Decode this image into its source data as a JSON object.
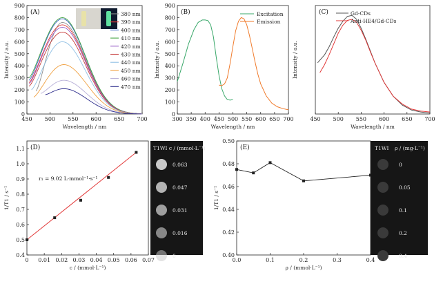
{
  "chart_data": [
    {
      "panel": "(A)",
      "type": "line",
      "xlabel": "Wavelength / nm",
      "ylabel": "Intensity / a.u.",
      "xlim": [
        450,
        700
      ],
      "ylim": [
        0,
        900
      ],
      "xticks": [
        450,
        500,
        550,
        600,
        650,
        700
      ],
      "yticks": [
        0,
        100,
        200,
        300,
        400,
        500,
        600,
        700,
        800,
        900
      ],
      "legend_position": "top-right",
      "series": [
        {
          "name": "380 nm",
          "color": "#8e8e8e",
          "start": 470,
          "peak_x": 527,
          "peak_y": 760,
          "start_y": 190
        },
        {
          "name": "390 nm",
          "color": "#e23a3a",
          "start": 455,
          "peak_x": 527,
          "peak_y": 740,
          "start_y": 260
        },
        {
          "name": "400 nm",
          "color": "#3b62c4",
          "start": 455,
          "peak_x": 527,
          "peak_y": 790,
          "start_y": 280
        },
        {
          "name": "410 nm",
          "color": "#47a846",
          "start": 455,
          "peak_x": 527,
          "peak_y": 800,
          "start_y": 300
        },
        {
          "name": "420 nm",
          "color": "#9a62c8",
          "start": 455,
          "peak_x": 527,
          "peak_y": 720,
          "start_y": 250
        },
        {
          "name": "430 nm",
          "color": "#c63a3a",
          "start": 455,
          "peak_x": 527,
          "peak_y": 680,
          "start_y": 230
        },
        {
          "name": "440 nm",
          "color": "#8fbfe4",
          "start": 460,
          "peak_x": 527,
          "peak_y": 600,
          "start_y": 200
        },
        {
          "name": "450 nm",
          "color": "#f0a040",
          "start": 465,
          "peak_x": 530,
          "peak_y": 410,
          "start_y": 140
        },
        {
          "name": "460 nm",
          "color": "#b8b0d8",
          "start": 480,
          "peak_x": 530,
          "peak_y": 280,
          "start_y": 170
        },
        {
          "name": "470 nm",
          "color": "#2c2c8c",
          "start": 490,
          "peak_x": 530,
          "peak_y": 210,
          "start_y": 160
        }
      ]
    },
    {
      "panel": "(B)",
      "type": "line",
      "xlabel": "Wavelength / nm",
      "ylabel": "Intensity / a.u.",
      "xlim": [
        300,
        700
      ],
      "ylim": [
        0,
        900
      ],
      "xticks": [
        300,
        350,
        400,
        450,
        500,
        550,
        600,
        650,
        700
      ],
      "yticks": [
        0,
        100,
        200,
        300,
        400,
        500,
        600,
        700,
        800,
        900
      ],
      "legend_position": "top-right",
      "series": [
        {
          "name": "Excitation",
          "color": "#3aa86a",
          "x": [
            300,
            320,
            340,
            360,
            375,
            390,
            400,
            410,
            420,
            430,
            440,
            450,
            460,
            470,
            480,
            490,
            500
          ],
          "y": [
            270,
            420,
            580,
            700,
            760,
            780,
            780,
            775,
            740,
            640,
            470,
            320,
            210,
            150,
            120,
            115,
            120
          ]
        },
        {
          "name": "Emission",
          "color": "#f07a2a",
          "x": [
            450,
            460,
            470,
            480,
            490,
            500,
            510,
            520,
            530,
            540,
            550,
            560,
            570,
            580,
            590,
            600,
            620,
            640,
            660,
            680,
            700
          ],
          "y": [
            240,
            235,
            250,
            300,
            420,
            560,
            690,
            770,
            800,
            790,
            740,
            650,
            540,
            430,
            330,
            250,
            150,
            90,
            60,
            45,
            35
          ]
        }
      ]
    },
    {
      "panel": "(C)",
      "type": "line",
      "xlabel": "Wavelength / nm",
      "ylabel": "Intensity / a.u.",
      "xlim": [
        450,
        700
      ],
      "xticks": [
        450,
        500,
        550,
        600,
        650,
        700
      ],
      "legend_position": "top-right",
      "series": [
        {
          "name": "Gd-CDs",
          "color": "#555555",
          "x": [
            455,
            470,
            480,
            490,
            500,
            510,
            520,
            530,
            540,
            550,
            560,
            570,
            580,
            600,
            620,
            640,
            660,
            680,
            700
          ],
          "y": [
            0.52,
            0.6,
            0.68,
            0.78,
            0.87,
            0.94,
            0.99,
            1.0,
            0.96,
            0.87,
            0.76,
            0.64,
            0.52,
            0.32,
            0.18,
            0.09,
            0.04,
            0.02,
            0.01
          ]
        },
        {
          "name": "Anti-HE4/Gd-CDs",
          "color": "#e23a3a",
          "x": [
            460,
            470,
            480,
            490,
            500,
            510,
            520,
            530,
            540,
            550,
            560,
            570,
            580,
            600,
            620,
            640,
            660,
            680,
            700
          ],
          "y": [
            0.42,
            0.5,
            0.6,
            0.71,
            0.82,
            0.9,
            0.95,
            0.96,
            0.93,
            0.85,
            0.75,
            0.63,
            0.52,
            0.32,
            0.18,
            0.1,
            0.05,
            0.03,
            0.02
          ]
        }
      ]
    },
    {
      "panel": "(D)",
      "type": "scatter",
      "xlabel": "c / (mmol·L⁻¹)",
      "ylabel": "1/T1 / s⁻¹",
      "xlim": [
        0,
        0.07
      ],
      "ylim": [
        0.4,
        1.15
      ],
      "xticks": [
        "0",
        "0.01",
        "0.02",
        "0.03",
        "0.04",
        "0.05",
        "0.06",
        "0.07"
      ],
      "xtick_values": [
        0,
        0.01,
        0.02,
        0.03,
        0.04,
        0.05,
        0.06,
        0.07
      ],
      "yticks": [
        "0.4",
        "0.5",
        "0.6",
        "0.7",
        "0.8",
        "0.9",
        "1.0",
        "1.1"
      ],
      "ytick_values": [
        0.4,
        0.5,
        0.6,
        0.7,
        0.8,
        0.9,
        1.0,
        1.1
      ],
      "points_x": [
        0,
        0.016,
        0.031,
        0.047,
        0.063
      ],
      "points_y": [
        0.5,
        0.645,
        0.76,
        0.91,
        1.075
      ],
      "fit": {
        "x": [
          0,
          0.063
        ],
        "y": [
          0.5,
          1.075
        ],
        "color": "#e23a3a"
      },
      "annotation": "r₁ = 9.02 L·mmol⁻¹·s⁻¹",
      "mri_header": "T1WI c / (mmol·L⁻¹)",
      "mri_labels": [
        "0.063",
        "0.047",
        "0.031",
        "0.016",
        "0"
      ]
    },
    {
      "panel": "(E)",
      "type": "line",
      "xlabel": "ρ / (mmol·L⁻¹)",
      "ylabel": "1/T1 / s⁻¹",
      "xlim": [
        0,
        0.4
      ],
      "ylim": [
        0.4,
        0.5
      ],
      "xticks": [
        "0.0",
        "0.1",
        "0.2",
        "0.3",
        "0.4"
      ],
      "xtick_values": [
        0,
        0.1,
        0.2,
        0.3,
        0.4
      ],
      "yticks": [
        "0.40",
        "0.42",
        "0.44",
        "0.46",
        "0.48",
        "0.50"
      ],
      "ytick_values": [
        0.4,
        0.42,
        0.44,
        0.46,
        0.48,
        0.5
      ],
      "x": [
        0,
        0.05,
        0.1,
        0.2,
        0.4
      ],
      "y": [
        0.475,
        0.472,
        0.481,
        0.465,
        0.47
      ],
      "mri_header_left": "T1WI",
      "mri_header_right": "ρ / (mg·L⁻¹)",
      "mri_labels": [
        "0",
        "0.05",
        "0.1",
        "0.2",
        "0.4"
      ]
    }
  ]
}
